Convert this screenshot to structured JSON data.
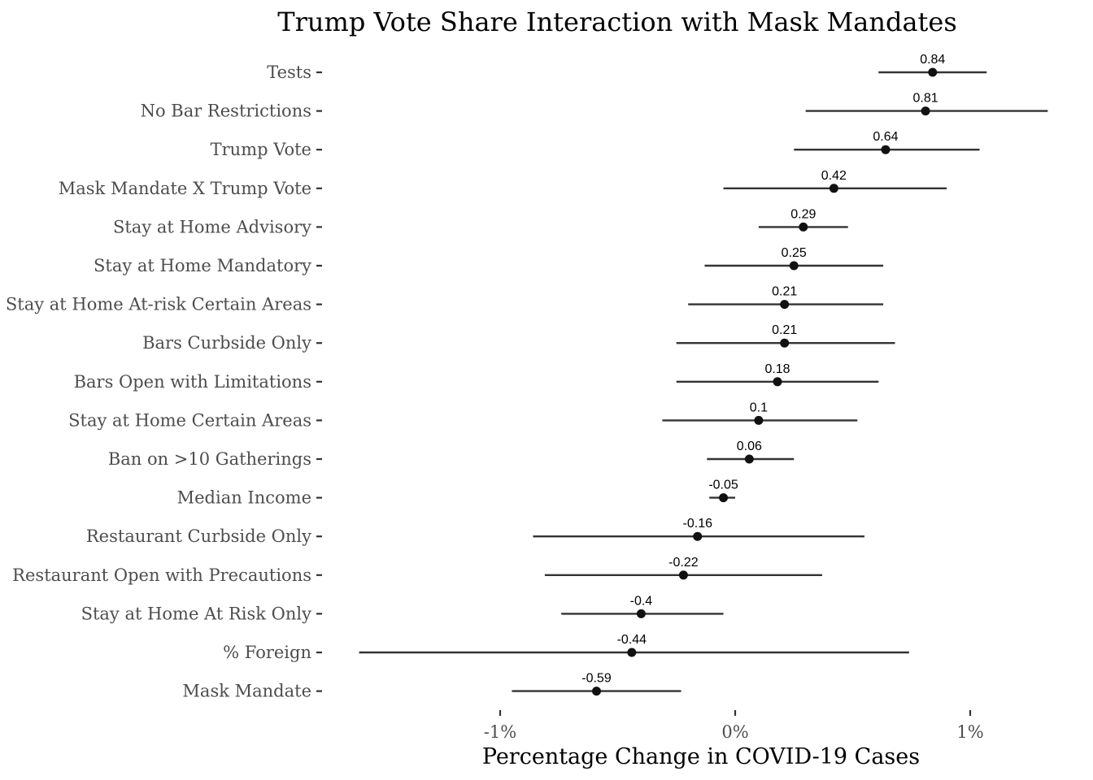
{
  "chart_data": {
    "type": "scatter",
    "subtype": "coefficient-plot",
    "title": "Trump Vote Share Interaction with Mask Mandates",
    "xlabel": "Percentage Change in COVID-19 Cases",
    "ylabel": "",
    "xlim": [
      -1.68,
      1.35
    ],
    "x_ticks": [
      -1,
      0,
      1
    ],
    "x_tick_labels": [
      "-1%",
      "0%",
      "1%"
    ],
    "grid": false,
    "legend": "none",
    "colors": {
      "point": "#111111",
      "interval": "#333333",
      "text": "#000000",
      "tick_label": "#4d4d4d"
    },
    "terms": [
      {
        "label": "Tests",
        "estimate": 0.84,
        "estimate_label": "0.84",
        "lower": 0.61,
        "upper": 1.07
      },
      {
        "label": "No Bar Restrictions",
        "estimate": 0.81,
        "estimate_label": "0.81",
        "lower": 0.3,
        "upper": 1.33
      },
      {
        "label": "Trump Vote",
        "estimate": 0.64,
        "estimate_label": "0.64",
        "lower": 0.25,
        "upper": 1.04
      },
      {
        "label": "Mask Mandate X Trump Vote",
        "estimate": 0.42,
        "estimate_label": "0.42",
        "lower": -0.05,
        "upper": 0.9
      },
      {
        "label": "Stay at Home Advisory",
        "estimate": 0.29,
        "estimate_label": "0.29",
        "lower": 0.1,
        "upper": 0.48
      },
      {
        "label": "Stay at Home Mandatory",
        "estimate": 0.25,
        "estimate_label": "0.25",
        "lower": -0.13,
        "upper": 0.63
      },
      {
        "label": "Stay at Home At-risk Certain Areas",
        "estimate": 0.21,
        "estimate_label": "0.21",
        "lower": -0.2,
        "upper": 0.63
      },
      {
        "label": "Bars Curbside Only",
        "estimate": 0.21,
        "estimate_label": "0.21",
        "lower": -0.25,
        "upper": 0.68
      },
      {
        "label": "Bars Open with Limitations",
        "estimate": 0.18,
        "estimate_label": "0.18",
        "lower": -0.25,
        "upper": 0.61
      },
      {
        "label": "Stay at Home Certain Areas",
        "estimate": 0.1,
        "estimate_label": "0.1",
        "lower": -0.31,
        "upper": 0.52
      },
      {
        "label": "Ban on >10 Gatherings",
        "estimate": 0.06,
        "estimate_label": "0.06",
        "lower": -0.12,
        "upper": 0.25
      },
      {
        "label": "Median Income",
        "estimate": -0.05,
        "estimate_label": "-0.05",
        "lower": -0.11,
        "upper": 0.0
      },
      {
        "label": "Restaurant Curbside Only",
        "estimate": -0.16,
        "estimate_label": "-0.16",
        "lower": -0.86,
        "upper": 0.55
      },
      {
        "label": "Restaurant Open with Precautions",
        "estimate": -0.22,
        "estimate_label": "-0.22",
        "lower": -0.81,
        "upper": 0.37
      },
      {
        "label": "Stay at Home At Risk Only",
        "estimate": -0.4,
        "estimate_label": "-0.4",
        "lower": -0.74,
        "upper": -0.05
      },
      {
        "label": "% Foreign",
        "estimate": -0.44,
        "estimate_label": "-0.44",
        "lower": -1.6,
        "upper": 0.74
      },
      {
        "label": "Mask Mandate",
        "estimate": -0.59,
        "estimate_label": "-0.59",
        "lower": -0.95,
        "upper": -0.23
      }
    ]
  }
}
